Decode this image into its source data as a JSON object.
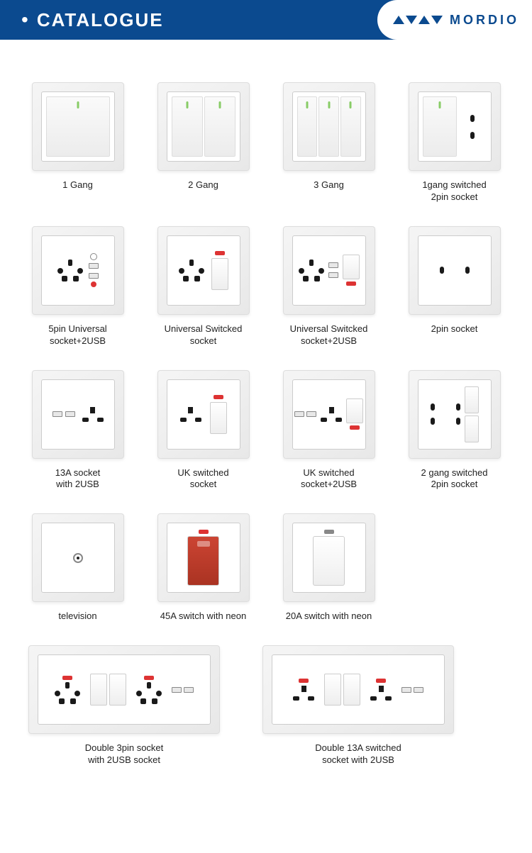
{
  "header": {
    "title": "CATALOGUE"
  },
  "brand": {
    "name": "MORDIO",
    "logo_color": "#0b4a8f"
  },
  "colors": {
    "header_bg": "#0b4a8f",
    "header_text": "#ffffff",
    "tile_bg": "#f0f0f0",
    "neon": "#d33333"
  },
  "products": [
    {
      "label": "1 Gang",
      "type": "gang",
      "gangs": 1
    },
    {
      "label": "2 Gang",
      "type": "gang",
      "gangs": 2
    },
    {
      "label": "3 Gang",
      "type": "gang",
      "gangs": 3
    },
    {
      "label": "1gang switched\n2pin socket",
      "type": "gang-2pin"
    },
    {
      "label": "5pin Universal\nsocket+2USB",
      "type": "univ-2usb"
    },
    {
      "label": "Universal Switcked\nsocket",
      "type": "univ-sw"
    },
    {
      "label": "Universal Switcked\nsocket+2USB",
      "type": "univ-sw-2usb"
    },
    {
      "label": "2pin socket",
      "type": "2pin"
    },
    {
      "label": "13A socket\nwith 2USB",
      "type": "uk-2usb"
    },
    {
      "label": "UK switched\nsocket",
      "type": "uk-sw"
    },
    {
      "label": "UK switched\nsocket+2USB",
      "type": "uk-sw-2usb"
    },
    {
      "label": "2 gang switched\n2pin socket",
      "type": "2gang-2pin"
    },
    {
      "label": "television",
      "type": "tv"
    },
    {
      "label": "45A switch with neon",
      "type": "45a"
    },
    {
      "label": "20A switch with neon",
      "type": "20a"
    }
  ],
  "wide_products": [
    {
      "label": "Double 3pin socket\nwith 2USB socket",
      "type": "dbl-3pin"
    },
    {
      "label": "Double 13A switched\nsocket with 2USB",
      "type": "dbl-13a"
    }
  ]
}
